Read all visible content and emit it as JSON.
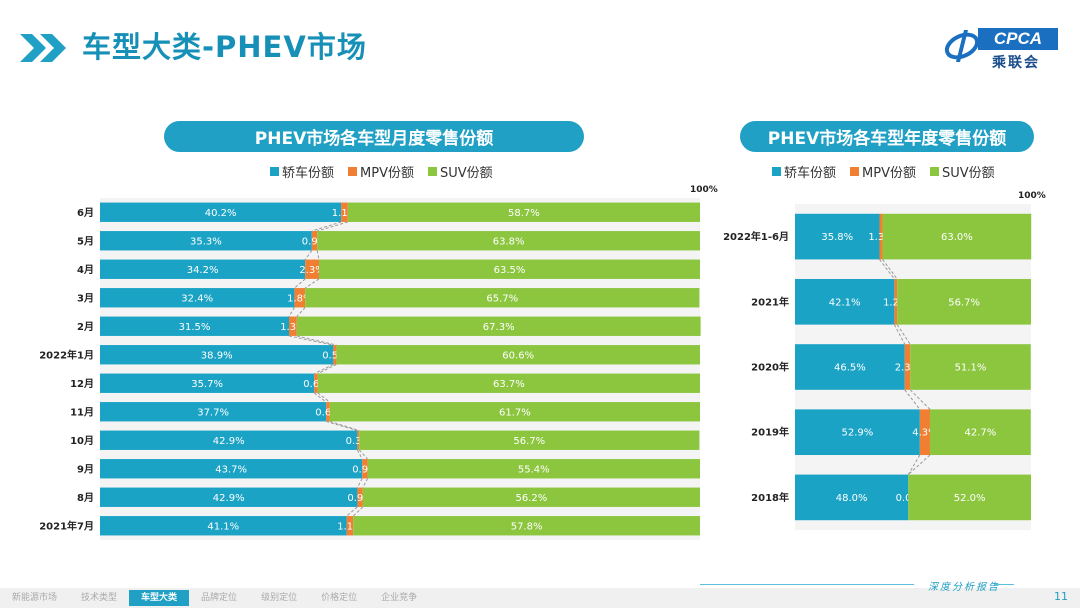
{
  "header": {
    "title": "车型大类-PHEV市场",
    "logo_text": "CPCA",
    "logo_cn": "乘联会"
  },
  "colors": {
    "sedan": "#1ba3c6",
    "mpv": "#f07f33",
    "suv": "#8cc63f",
    "accent": "#1fa0c4"
  },
  "legend": {
    "sedan": "轿车份额",
    "mpv": "MPV份额",
    "suv": "SUV份额"
  },
  "chart_data": [
    {
      "type": "bar",
      "stacked": true,
      "orientation": "horizontal",
      "title": "PHEV市场各车型月度零售份额",
      "axis_max_label": "100%",
      "categories": [
        "6月",
        "5月",
        "4月",
        "3月",
        "2月",
        "2022年1月",
        "12月",
        "11月",
        "10月",
        "9月",
        "8月",
        "2021年7月"
      ],
      "series": [
        {
          "name": "轿车份额",
          "values": [
            40.2,
            35.3,
            34.2,
            32.4,
            31.5,
            38.9,
            35.7,
            37.7,
            42.9,
            43.7,
            42.9,
            41.1
          ]
        },
        {
          "name": "MPV份额",
          "values": [
            1.1,
            0.9,
            2.3,
            1.8,
            1.3,
            0.5,
            0.6,
            0.6,
            0.3,
            0.9,
            0.9,
            1.1
          ]
        },
        {
          "name": "SUV份额",
          "values": [
            58.7,
            63.8,
            63.5,
            65.7,
            67.3,
            60.6,
            63.7,
            61.7,
            56.7,
            55.4,
            56.2,
            57.8
          ]
        }
      ],
      "labels": [
        [
          "40.2%",
          "1.1%",
          "58.7%"
        ],
        [
          "35.3%",
          "0.9%",
          "63.8%"
        ],
        [
          "34.2%",
          "2.3%",
          "63.5%"
        ],
        [
          "32.4%",
          "1.8%",
          "65.7%"
        ],
        [
          "31.5%",
          "1.3%",
          "67.3%"
        ],
        [
          "38.9%",
          "0.5%",
          "60.6%"
        ],
        [
          "35.7%",
          "0.6%",
          "63.7%"
        ],
        [
          "37.7%",
          "0.6%",
          "61.7%"
        ],
        [
          "42.9%",
          "0.3%",
          "56.7%"
        ],
        [
          "43.7%",
          "0.9%",
          "55.4%"
        ],
        [
          "42.9%",
          "0.9%",
          "56.2%"
        ],
        [
          "41.1%",
          "1.1%",
          "57.8%"
        ]
      ]
    },
    {
      "type": "bar",
      "stacked": true,
      "orientation": "horizontal",
      "title": "PHEV市场各车型年度零售份额",
      "axis_max_label": "100%",
      "categories": [
        "2022年1-6月",
        "2021年",
        "2020年",
        "2019年",
        "2018年"
      ],
      "series": [
        {
          "name": "轿车份额",
          "values": [
            35.8,
            42.1,
            46.5,
            52.9,
            48.0
          ]
        },
        {
          "name": "MPV份额",
          "values": [
            1.3,
            1.2,
            2.3,
            4.3,
            0.0
          ]
        },
        {
          "name": "SUV份额",
          "values": [
            63.0,
            56.7,
            51.1,
            42.7,
            52.0
          ]
        }
      ],
      "labels": [
        [
          "35.8%",
          "1.3%",
          "63.0%"
        ],
        [
          "42.1%",
          "1.2%",
          "56.7%"
        ],
        [
          "46.5%",
          "2.3%",
          "51.1%"
        ],
        [
          "52.9%",
          "4.3%",
          "42.7%"
        ],
        [
          "48.0%",
          "0.0%",
          "52.0%"
        ]
      ]
    }
  ],
  "footer": {
    "tabs": [
      "新能源市场",
      "技术类型",
      "车型大类",
      "品牌定位",
      "级别定位",
      "价格定位",
      "企业竞争"
    ],
    "active_tab": "车型大类",
    "report_label": "深度分析报告",
    "page_number": "11"
  }
}
